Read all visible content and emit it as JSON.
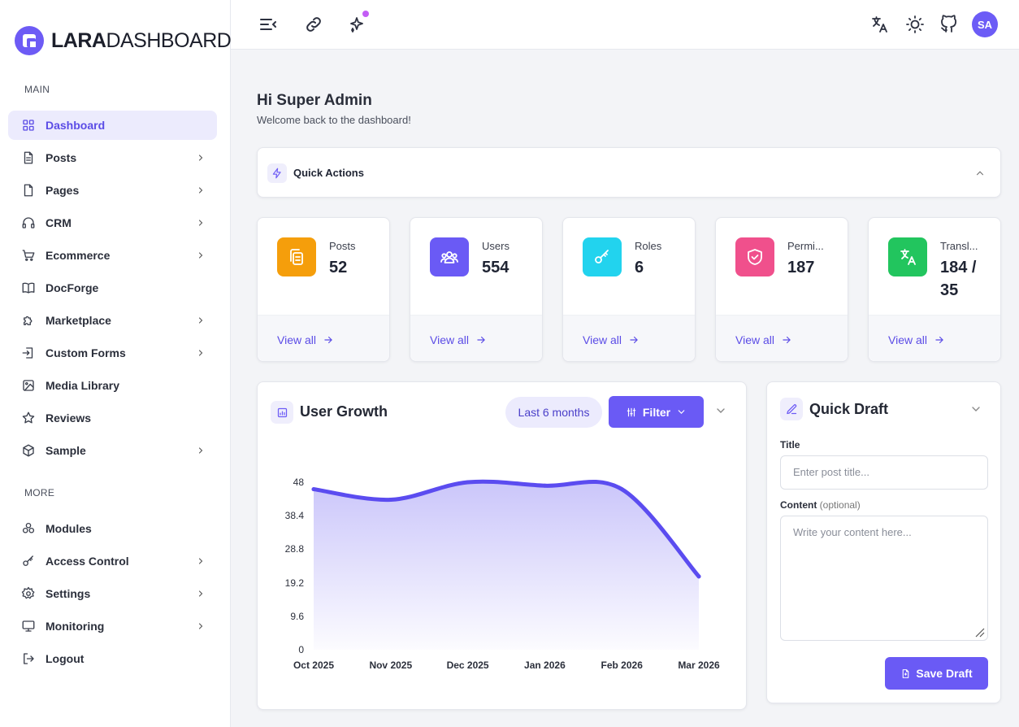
{
  "brand": {
    "name_bold": "LARA",
    "name_rest": "DASHBOARD"
  },
  "sidebar": {
    "main_label": "MAIN",
    "more_label": "MORE",
    "main_items": [
      {
        "label": "Dashboard",
        "icon": "grid-icon",
        "active": true,
        "has_children": false
      },
      {
        "label": "Posts",
        "icon": "document-icon",
        "has_children": true
      },
      {
        "label": "Pages",
        "icon": "file-icon",
        "has_children": true
      },
      {
        "label": "CRM",
        "icon": "headphones-icon",
        "has_children": true
      },
      {
        "label": "Ecommerce",
        "icon": "cart-icon",
        "has_children": true
      },
      {
        "label": "DocForge",
        "icon": "book-icon",
        "has_children": false
      },
      {
        "label": "Marketplace",
        "icon": "puzzle-icon",
        "has_children": true
      },
      {
        "label": "Custom Forms",
        "icon": "form-icon",
        "has_children": true
      },
      {
        "label": "Media Library",
        "icon": "image-icon",
        "has_children": false
      },
      {
        "label": "Reviews",
        "icon": "star-icon",
        "has_children": false
      },
      {
        "label": "Sample",
        "icon": "cube-icon",
        "has_children": true
      }
    ],
    "more_items": [
      {
        "label": "Modules",
        "icon": "modules-icon",
        "has_children": false
      },
      {
        "label": "Access Control",
        "icon": "key-icon",
        "has_children": true
      },
      {
        "label": "Settings",
        "icon": "gear-icon",
        "has_children": true
      },
      {
        "label": "Monitoring",
        "icon": "monitor-icon",
        "has_children": true
      },
      {
        "label": "Logout",
        "icon": "logout-icon",
        "has_children": false
      }
    ]
  },
  "topbar": {
    "icons": [
      "menu-collapse-icon",
      "link-icon",
      "sparkle-icon",
      "translate-icon",
      "sun-icon",
      "github-icon"
    ],
    "avatar_initials": "SA"
  },
  "greeting": {
    "title": "Hi Super Admin",
    "subtitle": "Welcome back to the dashboard!"
  },
  "quick_actions": {
    "title": "Quick Actions"
  },
  "stats": [
    {
      "label": "Posts",
      "value": "52",
      "color": "#f59e0b",
      "icon": "copy-icon",
      "link": "View all"
    },
    {
      "label": "Users",
      "value": "554",
      "color": "#6a5af5",
      "icon": "users-icon",
      "link": "View all"
    },
    {
      "label": "Roles",
      "value": "6",
      "color": "#22d3ee",
      "icon": "key-icon",
      "link": "View all"
    },
    {
      "label": "Permi...",
      "value": "187",
      "color": "#f0508c",
      "icon": "shield-icon",
      "link": "View all"
    },
    {
      "label": "Transl...",
      "value": "184 / 35",
      "color": "#22c55e",
      "icon": "translate-icon",
      "link": "View all"
    }
  ],
  "user_growth": {
    "title": "User Growth",
    "range_label": "Last 6 months",
    "filter_label": "Filter"
  },
  "chart_data": {
    "type": "area",
    "categories": [
      "Oct 2025",
      "Nov 2025",
      "Dec 2025",
      "Jan 2026",
      "Feb 2026",
      "Mar 2026"
    ],
    "series": [
      {
        "values": [
          46,
          43,
          48,
          47,
          46,
          21
        ]
      }
    ],
    "y_ticks": [
      "0",
      "9.6",
      "19.2",
      "28.8",
      "38.4",
      "48"
    ],
    "ylim": [
      0,
      48
    ],
    "color": "#5b4cf0",
    "grid": false
  },
  "quick_draft": {
    "title": "Quick Draft",
    "title_label": "Title",
    "title_placeholder": "Enter post title...",
    "content_label": "Content",
    "content_optional": "(optional)",
    "content_placeholder": "Write your content here...",
    "save_label": "Save Draft"
  }
}
